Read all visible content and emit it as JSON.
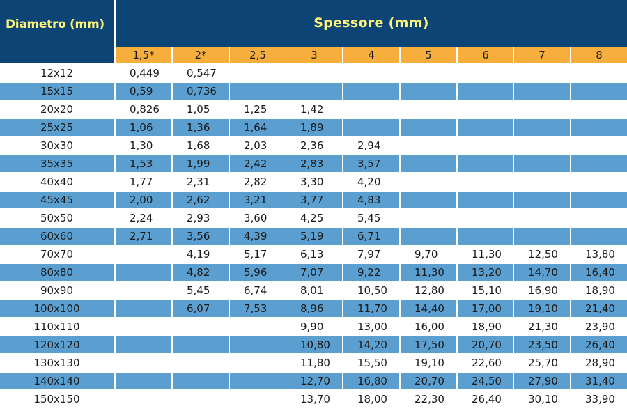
{
  "table": {
    "diameter_header": "Diametro (mm)",
    "thickness_header": "Spessore (mm)",
    "thicknesses": [
      "1,5*",
      "2*",
      "2,5",
      "3",
      "4",
      "5",
      "6",
      "7",
      "8"
    ],
    "rows": [
      {
        "d": "12x12",
        "v": [
          "0,449",
          "0,547",
          "",
          "",
          "",
          "",
          "",
          "",
          ""
        ]
      },
      {
        "d": "15x15",
        "v": [
          "0,59",
          "0,736",
          "",
          "",
          "",
          "",
          "",
          "",
          ""
        ]
      },
      {
        "d": "20x20",
        "v": [
          "0,826",
          "1,05",
          "1,25",
          "1,42",
          "",
          "",
          "",
          "",
          ""
        ]
      },
      {
        "d": "25x25",
        "v": [
          "1,06",
          "1,36",
          "1,64",
          "1,89",
          "",
          "",
          "",
          "",
          ""
        ]
      },
      {
        "d": "30x30",
        "v": [
          "1,30",
          "1,68",
          "2,03",
          "2,36",
          "2,94",
          "",
          "",
          "",
          ""
        ]
      },
      {
        "d": "35x35",
        "v": [
          "1,53",
          "1,99",
          "2,42",
          "2,83",
          "3,57",
          "",
          "",
          "",
          ""
        ]
      },
      {
        "d": "40x40",
        "v": [
          "1,77",
          "2,31",
          "2,82",
          "3,30",
          "4,20",
          "",
          "",
          "",
          ""
        ]
      },
      {
        "d": "45x45",
        "v": [
          "2,00",
          "2,62",
          "3,21",
          "3,77",
          "4,83",
          "",
          "",
          "",
          ""
        ]
      },
      {
        "d": "50x50",
        "v": [
          "2,24",
          "2,93",
          "3,60",
          "4,25",
          "5,45",
          "",
          "",
          "",
          ""
        ]
      },
      {
        "d": "60x60",
        "v": [
          "2,71",
          "3,56",
          "4,39",
          "5,19",
          "6,71",
          "",
          "",
          "",
          ""
        ]
      },
      {
        "d": "70x70",
        "v": [
          "",
          "4,19",
          "5,17",
          "6,13",
          "7,97",
          "9,70",
          "11,30",
          "12,50",
          "13,80"
        ]
      },
      {
        "d": "80x80",
        "v": [
          "",
          "4,82",
          "5,96",
          "7,07",
          "9,22",
          "11,30",
          "13,20",
          "14,70",
          "16,40"
        ]
      },
      {
        "d": "90x90",
        "v": [
          "",
          "5,45",
          "6,74",
          "8,01",
          "10,50",
          "12,80",
          "15,10",
          "16,90",
          "18,90"
        ]
      },
      {
        "d": "100x100",
        "v": [
          "",
          "6,07",
          "7,53",
          "8,96",
          "11,70",
          "14,40",
          "17,00",
          "19,10",
          "21,40"
        ]
      },
      {
        "d": "110x110",
        "v": [
          "",
          "",
          "",
          "9,90",
          "13,00",
          "16,00",
          "18,90",
          "21,30",
          "23,90"
        ]
      },
      {
        "d": "120x120",
        "v": [
          "",
          "",
          "",
          "10,80",
          "14,20",
          "17,50",
          "20,70",
          "23,50",
          "26,40"
        ]
      },
      {
        "d": "130x130",
        "v": [
          "",
          "",
          "",
          "11,80",
          "15,50",
          "19,10",
          "22,60",
          "25,70",
          "28,90"
        ]
      },
      {
        "d": "140x140",
        "v": [
          "",
          "",
          "",
          "12,70",
          "16,80",
          "20,70",
          "24,50",
          "27,90",
          "31,40"
        ]
      },
      {
        "d": "150x150",
        "v": [
          "",
          "",
          "",
          "13,70",
          "18,00",
          "22,30",
          "26,40",
          "30,10",
          "33,90"
        ]
      }
    ]
  }
}
